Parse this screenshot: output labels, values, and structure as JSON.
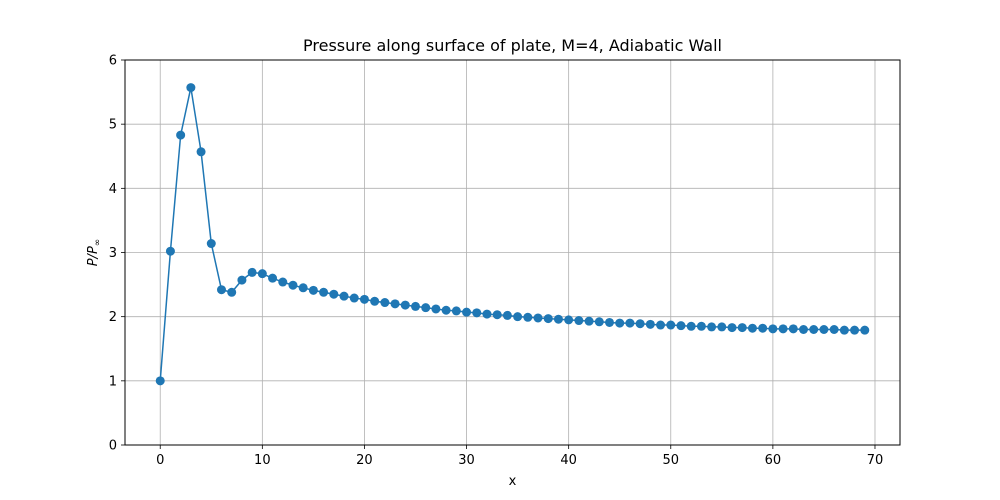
{
  "chart_data": {
    "type": "line",
    "title": "Pressure along surface of plate, M=4, Adiabatic Wall",
    "xlabel": "x",
    "ylabel_main": "P/P",
    "ylabel_sub": "∞",
    "xlim": [
      -3.45,
      72.45
    ],
    "ylim": [
      0,
      6
    ],
    "xticks": [
      0,
      10,
      20,
      30,
      40,
      50,
      60,
      70
    ],
    "yticks": [
      0,
      1,
      2,
      3,
      4,
      5,
      6
    ],
    "xtick_labels": [
      "0",
      "10",
      "20",
      "30",
      "40",
      "50",
      "60",
      "70"
    ],
    "ytick_labels": [
      "0",
      "1",
      "2",
      "3",
      "4",
      "5",
      "6"
    ],
    "grid": true,
    "legend": "none",
    "color": "#1f77b4",
    "marker": "circle",
    "series": [
      {
        "x": [
          0,
          1,
          2,
          3,
          4,
          5,
          6,
          7,
          8,
          9,
          10,
          11,
          12,
          13,
          14,
          15,
          16,
          17,
          18,
          19,
          20,
          21,
          22,
          23,
          24,
          25,
          26,
          27,
          28,
          29,
          30,
          31,
          32,
          33,
          34,
          35,
          36,
          37,
          38,
          39,
          40,
          41,
          42,
          43,
          44,
          45,
          46,
          47,
          48,
          49,
          50,
          51,
          52,
          53,
          54,
          55,
          56,
          57,
          58,
          59,
          60,
          61,
          62,
          63,
          64,
          65,
          66,
          67,
          68,
          69
        ],
        "values": [
          1.0,
          3.02,
          4.83,
          5.57,
          4.57,
          3.14,
          2.42,
          2.38,
          2.57,
          2.69,
          2.67,
          2.6,
          2.54,
          2.49,
          2.45,
          2.41,
          2.38,
          2.35,
          2.32,
          2.29,
          2.27,
          2.24,
          2.22,
          2.2,
          2.18,
          2.16,
          2.14,
          2.12,
          2.1,
          2.09,
          2.07,
          2.06,
          2.04,
          2.03,
          2.02,
          2.0,
          1.99,
          1.98,
          1.97,
          1.96,
          1.95,
          1.94,
          1.93,
          1.92,
          1.91,
          1.9,
          1.9,
          1.89,
          1.88,
          1.87,
          1.87,
          1.86,
          1.85,
          1.85,
          1.84,
          1.84,
          1.83,
          1.83,
          1.82,
          1.82,
          1.81,
          1.81,
          1.81,
          1.8,
          1.8,
          1.8,
          1.8,
          1.79,
          1.79,
          1.79
        ]
      }
    ]
  }
}
